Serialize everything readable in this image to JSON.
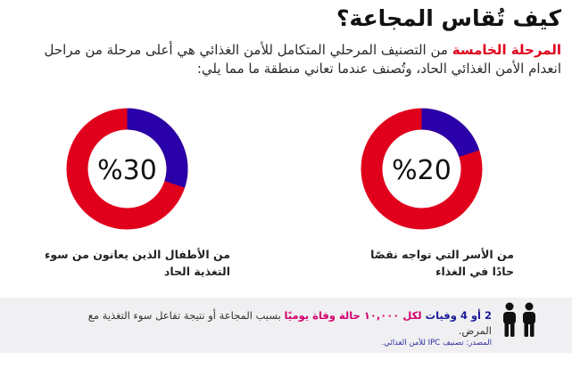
{
  "title": "كيف تُقاس المجاعة؟",
  "intro": {
    "highlight": "المرحلة الخامسة",
    "rest": " من التصنيف المرحلي المتكامل للأمن الغذائي هي أعلى مرحلة من مراحل انعدام الأمن الغذائي الحاد، وتُصنف عندما تعاني منطقة ما مما يلي:"
  },
  "stats": [
    {
      "percent": 20,
      "label": "%20",
      "desc_line1": "من الأسر التي تواجه نقصًا",
      "desc_line2": "حادًا في الغذاء"
    },
    {
      "percent": 30,
      "label": "%30",
      "desc_line1": "من الأطفال  الذين يعانون من سوء",
      "desc_line2": "التغذية الحاد"
    }
  ],
  "colors": {
    "ring": "#e0001c",
    "segment": "#2a00a8",
    "highlight": "#e0001c"
  },
  "footer": {
    "stat_bold": "2 أو 4 وفيات",
    "stat_pink": " لكل ١٠,٠٠٠ حالة وفاة يوميًا",
    "stat_rest": " بسبب المجاعة أو نتيجة تفاعل سوء التغذية مع المرض.",
    "source": "المصدر: تصنيف IPC للأمن الغذائي.",
    "icon": "people-icon"
  }
}
